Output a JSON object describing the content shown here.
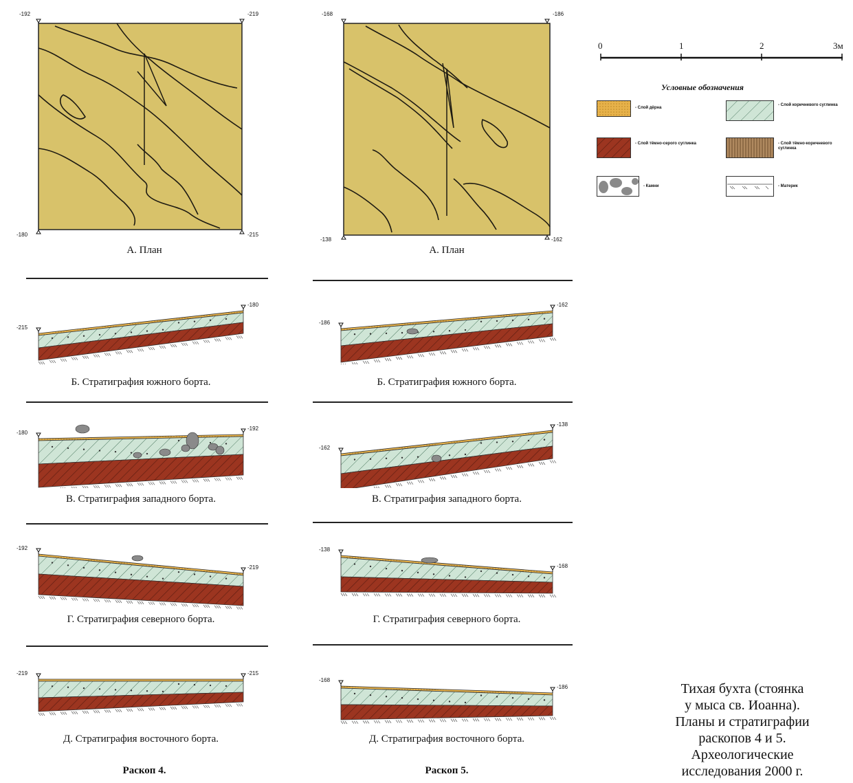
{
  "colors": {
    "plan_fill": "#d8c26a",
    "sod": "#e7b24a",
    "loam": "#cfe5d6",
    "brown": "#9c3520",
    "grey_brown": "#b08a60",
    "stone": "#8a8a8a"
  },
  "excavation4": {
    "title": "Раскоп 4.",
    "plan": {
      "caption": "А. План",
      "tl": "-192",
      "tr": "-219",
      "bl": "-180",
      "br": "-215"
    },
    "sections": [
      {
        "caption": "Б. Стратиграфия южного борта.",
        "left": "-215",
        "right": "-180"
      },
      {
        "caption": "В. Стратиграфия западного борта.",
        "left": "-180",
        "right": "-192"
      },
      {
        "caption": "Г. Стратиграфия северного борта.",
        "left": "-192",
        "right": "-219"
      },
      {
        "caption": "Д. Стратиграфия восточного борта.",
        "left": "-219",
        "right": "-215"
      }
    ]
  },
  "excavation5": {
    "title": "Раскоп 5.",
    "plan": {
      "caption": "А. План",
      "tl": "-168",
      "tr": "-186",
      "bl": "-138",
      "br": "-162"
    },
    "sections": [
      {
        "caption": "Б. Стратиграфия южного борта.",
        "left": "-186",
        "right": "-162"
      },
      {
        "caption": "В. Стратиграфия западного борта.",
        "left": "-162",
        "right": "-138"
      },
      {
        "caption": "Г. Стратиграфия северного борта.",
        "left": "-138",
        "right": "-168"
      },
      {
        "caption": "Д. Стратиграфия восточного борта.",
        "left": "-168",
        "right": "-186"
      }
    ]
  },
  "scale": {
    "ticks": [
      "0",
      "1",
      "2",
      "3м"
    ]
  },
  "legend": {
    "heading": "Условные обозначения",
    "items": [
      {
        "swatch": "sod",
        "label": "- Слой дёрна"
      },
      {
        "swatch": "loam",
        "label": "- Слой коричневого суглинка"
      },
      {
        "swatch": "brown",
        "label": "- Слой тёмно-серого суглинка"
      },
      {
        "swatch": "grey_brown",
        "label": "- Слой тёмно-коричневого суглинка"
      },
      {
        "swatch": "stones",
        "label": "- Камни"
      },
      {
        "swatch": "bedrock",
        "label": "- Материк"
      }
    ]
  },
  "main_title": {
    "lines": [
      "Тихая бухта (стоянка",
      "у мыса св. Иоанна).",
      "Планы и стратиграфии",
      "раскопов 4 и 5.",
      "Археологические",
      "исследования 2000 г."
    ]
  }
}
